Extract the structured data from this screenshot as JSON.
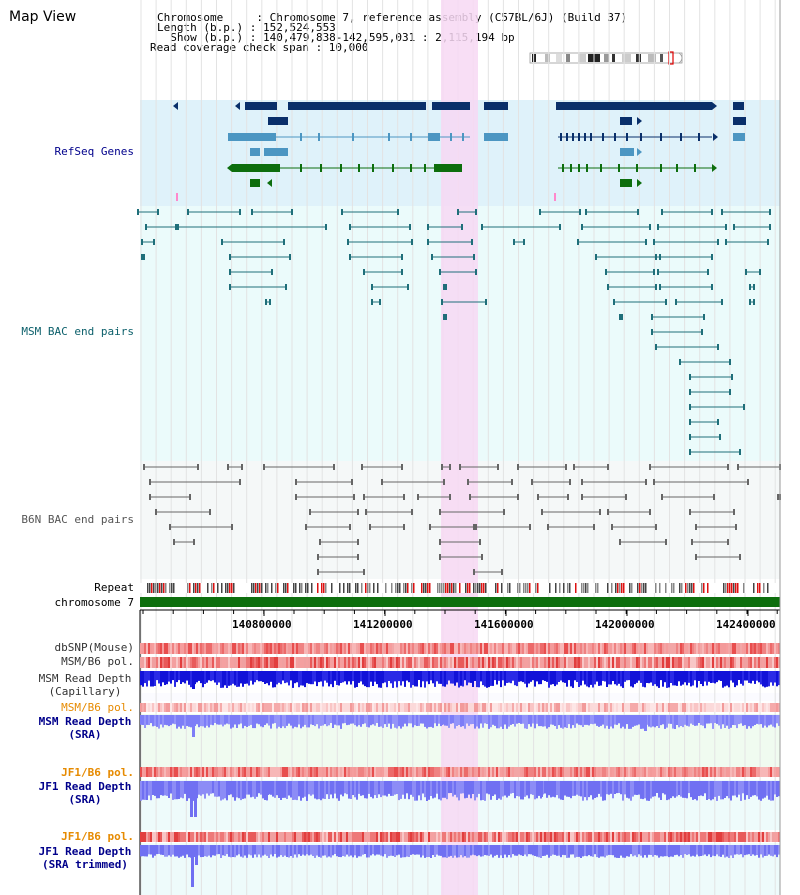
{
  "map_title": "Map View",
  "header": {
    "lines": [
      "Chromosome     : Chromosome 7, reference assembly (C57BL/6J) (Build 37)",
      "Length (b.p.) : 152,524,553",
      "  Show (b.p.) : 140,479,838-142,595,031 : 2,115,194 bp",
      "Read coverage check span : 10,000"
    ]
  },
  "tracks": {
    "refseq": "RefSeq Genes",
    "msm_bac": "MSM BAC end pairs",
    "b6n_bac": "B6N BAC end pairs",
    "repeat": "Repeat",
    "chromosome": "chromosome 7",
    "dbsnp": "dbSNP(Mouse)",
    "msm_b6_pol": "MSM/B6 pol.",
    "msm_depth_cap_1": "MSM Read Depth",
    "msm_depth_cap_2": "(Capillary)",
    "msm_b6_pol_2": "MSM/B6 pol.",
    "msm_depth_sra_1": "MSM Read Depth",
    "msm_depth_sra_2": "(SRA)",
    "jf1_b6_pol": "JF1/B6 pol.",
    "jf1_depth_sra_1": "JF1 Read Depth",
    "jf1_depth_sra_2": "(SRA)",
    "jf1_b6_pol_2": "JF1/B6 pol.",
    "jf1_depth_trim_1": "JF1 Read Depth",
    "jf1_depth_trim_2": "(SRA trimmed)"
  },
  "scale": {
    "ticks": [
      "140800000",
      "141200000",
      "141600000",
      "142000000",
      "142400000"
    ]
  },
  "colors": {
    "refseq_bg": "#dff2fa",
    "bac_bg": "#ebfbfb",
    "highlight": "#f7d8f3",
    "gene_dark": "#0a2f6a",
    "gene_light": "#4c96c2",
    "gene_green": "#0d6e0d",
    "msm_bac": "#1f6f7a",
    "b6n_bac": "#666666",
    "depth_dark": "#1212d8",
    "depth_light": "#7d7df7",
    "label_blue": "#00008b",
    "label_teal": "#0b5f6a",
    "label_orange": "#e68a00"
  }
}
